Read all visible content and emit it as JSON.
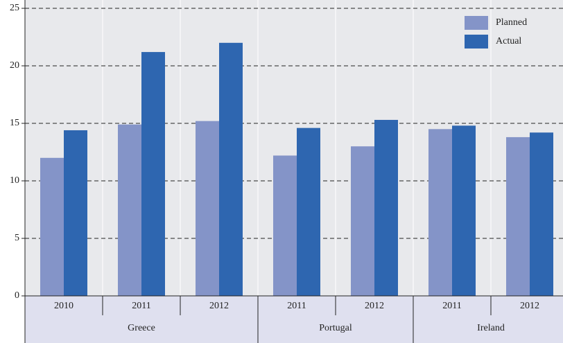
{
  "chart_data": {
    "type": "bar",
    "groups": [
      {
        "name": "Greece",
        "categories": [
          "2010",
          "2011",
          "2012"
        ]
      },
      {
        "name": "Portugal",
        "categories": [
          "2011",
          "2012"
        ]
      },
      {
        "name": "Ireland",
        "categories": [
          "2011",
          "2012"
        ]
      }
    ],
    "series": [
      {
        "name": "Planned",
        "color": "#8494c8",
        "values": [
          12.0,
          14.9,
          15.2,
          12.2,
          13.0,
          14.5,
          13.8
        ]
      },
      {
        "name": "Actual",
        "color": "#2e66b0",
        "values": [
          14.4,
          21.2,
          22.0,
          14.6,
          15.3,
          14.8,
          14.2
        ]
      }
    ],
    "ylim": [
      0,
      25
    ],
    "yticks": [
      0,
      5,
      10,
      15,
      20,
      25
    ],
    "grid": true,
    "legend": "top-right"
  }
}
